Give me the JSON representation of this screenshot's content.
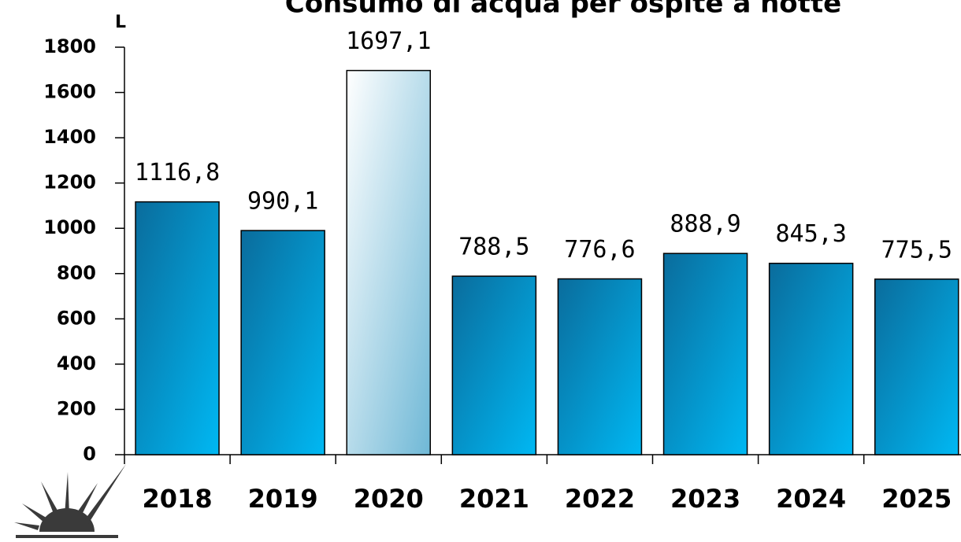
{
  "chart_data": {
    "type": "bar",
    "title": "Consumo di acqua per ospite a notte",
    "y_label": "L",
    "categories": [
      "2018",
      "2019",
      "2020",
      "2021",
      "2022",
      "2023",
      "2024",
      "2025"
    ],
    "values": [
      1116.8,
      990.1,
      1697.1,
      788.5,
      776.6,
      888.9,
      845.3,
      775.5
    ],
    "value_labels": [
      "1116,8",
      "990,1",
      "1697,1",
      "788,5",
      "776,6",
      "888,9",
      "845,3",
      "775,5"
    ],
    "colors": [
      [
        "#0a6c9c",
        "#00b8f3"
      ],
      [
        "#0a6c9c",
        "#00b8f3"
      ],
      [
        "#ffffff",
        "#6fb8d6"
      ],
      [
        "#0a6c9c",
        "#00b8f3"
      ],
      [
        "#0a6c9c",
        "#00b8f3"
      ],
      [
        "#0a6c9c",
        "#00b8f3"
      ],
      [
        "#0a6c9c",
        "#00b8f3"
      ],
      [
        "#0a6c9c",
        "#00b8f3"
      ]
    ],
    "ylim": [
      0,
      1800
    ],
    "yticks": [
      0,
      200,
      400,
      600,
      800,
      1000,
      1200,
      1400,
      1600,
      1800
    ]
  }
}
